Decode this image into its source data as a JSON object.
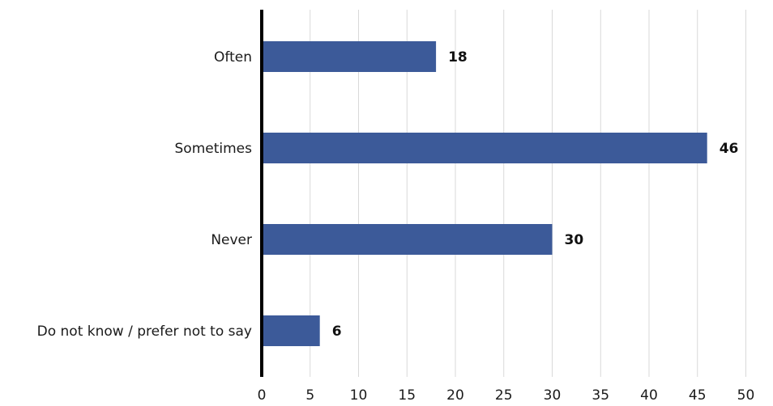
{
  "chart_data": {
    "type": "bar",
    "orientation": "horizontal",
    "title": "",
    "xlabel": "",
    "ylabel": "",
    "categories": [
      "Often",
      "Sometimes",
      "Never",
      "Do not know / prefer not to say"
    ],
    "values": [
      18,
      46,
      30,
      6
    ],
    "data_labels": [
      "18",
      "46",
      "30",
      "6"
    ],
    "xlim": [
      0,
      50
    ],
    "x_ticks": [
      0,
      5,
      10,
      15,
      20,
      25,
      30,
      35,
      40,
      45,
      50
    ],
    "x_tick_labels": [
      "0",
      "5",
      "10",
      "15",
      "20",
      "25",
      "30",
      "35",
      "40",
      "45",
      "50"
    ],
    "grid": "vertical",
    "legend": "none",
    "bar_color": "#3c5a99",
    "axis_color": "#000000",
    "grid_color": "#d9d9d9"
  }
}
